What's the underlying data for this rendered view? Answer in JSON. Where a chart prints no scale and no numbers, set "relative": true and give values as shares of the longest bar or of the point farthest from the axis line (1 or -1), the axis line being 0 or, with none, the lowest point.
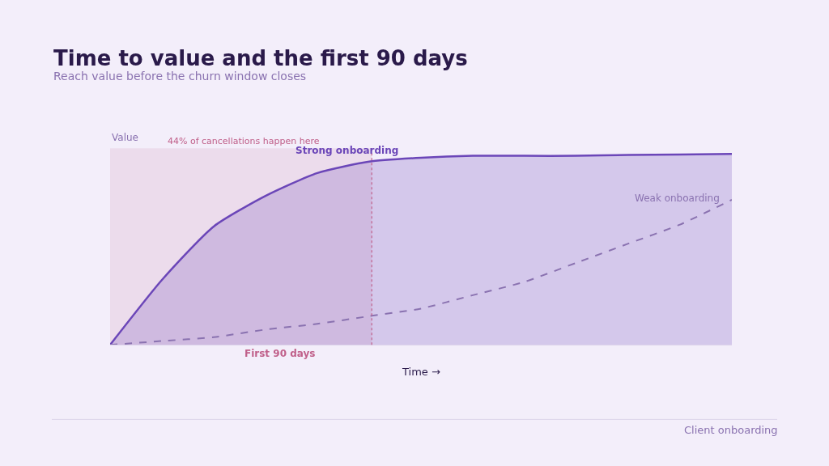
{
  "chart_data": {
    "type": "area",
    "title": "Time to value and the first 90 days",
    "subtitle": "Reach value before the churn window closes",
    "xlabel": "Time →",
    "ylabel": "Value",
    "relative": true,
    "legend": false,
    "categories": [
      null,
      null,
      null,
      null,
      null,
      null,
      null,
      null,
      null,
      null,
      null,
      null,
      null
    ],
    "series": [
      {
        "name": "Strong onboarding",
        "color": "#6b46b8",
        "line_style": "solid",
        "values": [
          0,
          0.34,
          0.62,
          0.78,
          0.9,
          0.96,
          0.98,
          0.99,
          0.99,
          0.99,
          0.995,
          0.997,
          1
        ]
      },
      {
        "name": "Weak onboarding",
        "type": "line",
        "color": "#8a72b0",
        "line_style": "dashed",
        "values": [
          0,
          0.02,
          0.04,
          0.08,
          0.11,
          0.15,
          0.19,
          0.26,
          0.33,
          0.43,
          0.53,
          0.63,
          0.76
        ]
      }
    ],
    "annotations": [
      "44% of cancellations happen here",
      "First 90 days",
      "Client onboarding"
    ]
  }
}
